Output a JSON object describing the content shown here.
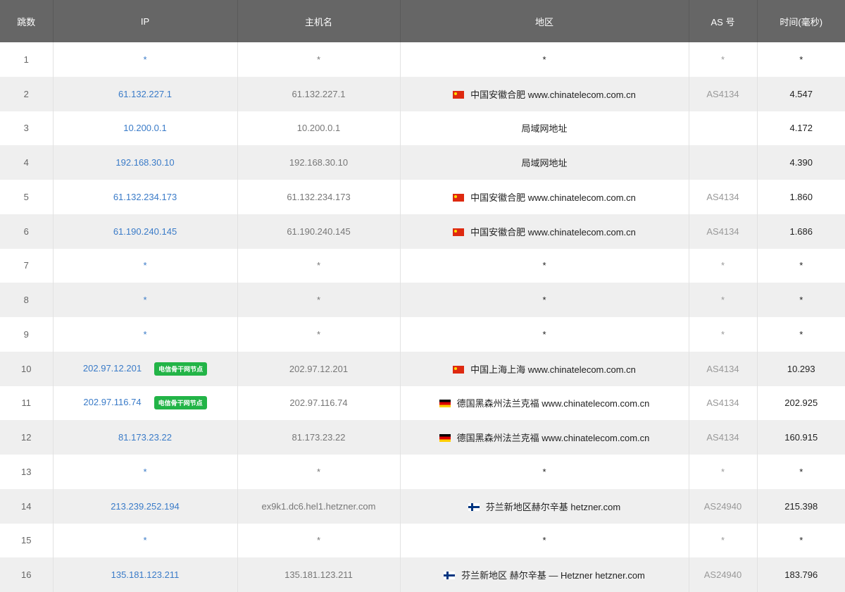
{
  "headers": {
    "hop": "跳数",
    "ip": "IP",
    "host": "主机名",
    "region": "地区",
    "as": "AS 号",
    "time": "时间(毫秒)"
  },
  "colors": {
    "header_bg": "#666666",
    "ip_link": "#3a7bc8",
    "badge": "#22b447",
    "alt_row": "#efefef"
  },
  "rows": [
    {
      "hop": "1",
      "ip": "*",
      "host": "*",
      "flag": "",
      "region": "*",
      "as": "*",
      "time": "*"
    },
    {
      "hop": "2",
      "ip": "61.132.227.1",
      "host": "61.132.227.1",
      "flag": "cn",
      "region": "中国安徽合肥 www.chinatelecom.com.cn",
      "as": "AS4134",
      "time": "4.547"
    },
    {
      "hop": "3",
      "ip": "10.200.0.1",
      "host": "10.200.0.1",
      "flag": "",
      "region": "局域网地址",
      "as": "",
      "time": "4.172"
    },
    {
      "hop": "4",
      "ip": "192.168.30.10",
      "host": "192.168.30.10",
      "flag": "",
      "region": "局域网地址",
      "as": "",
      "time": "4.390"
    },
    {
      "hop": "5",
      "ip": "61.132.234.173",
      "host": "61.132.234.173",
      "flag": "cn",
      "region": "中国安徽合肥 www.chinatelecom.com.cn",
      "as": "AS4134",
      "time": "1.860"
    },
    {
      "hop": "6",
      "ip": "61.190.240.145",
      "host": "61.190.240.145",
      "flag": "cn",
      "region": "中国安徽合肥 www.chinatelecom.com.cn",
      "as": "AS4134",
      "time": "1.686"
    },
    {
      "hop": "7",
      "ip": "*",
      "host": "*",
      "flag": "",
      "region": "*",
      "as": "*",
      "time": "*"
    },
    {
      "hop": "8",
      "ip": "*",
      "host": "*",
      "flag": "",
      "region": "*",
      "as": "*",
      "time": "*"
    },
    {
      "hop": "9",
      "ip": "*",
      "host": "*",
      "flag": "",
      "region": "*",
      "as": "*",
      "time": "*"
    },
    {
      "hop": "10",
      "ip": "202.97.12.201",
      "badge": "电信骨干网节点",
      "host": "202.97.12.201",
      "flag": "cn",
      "region": "中国上海上海 www.chinatelecom.com.cn",
      "as": "AS4134",
      "time": "10.293"
    },
    {
      "hop": "11",
      "ip": "202.97.116.74",
      "badge": "电信骨干网节点",
      "host": "202.97.116.74",
      "flag": "de",
      "region": "德国黑森州法兰克福 www.chinatelecom.com.cn",
      "as": "AS4134",
      "time": "202.925"
    },
    {
      "hop": "12",
      "ip": "81.173.23.22",
      "host": "81.173.23.22",
      "flag": "de",
      "region": "德国黑森州法兰克福 www.chinatelecom.com.cn",
      "as": "AS4134",
      "time": "160.915"
    },
    {
      "hop": "13",
      "ip": "*",
      "host": "*",
      "flag": "",
      "region": "*",
      "as": "*",
      "time": "*"
    },
    {
      "hop": "14",
      "ip": "213.239.252.194",
      "host": "ex9k1.dc6.hel1.hetzner.com",
      "flag": "fi",
      "region": "芬兰新地区赫尔辛基 hetzner.com",
      "as": "AS24940",
      "time": "215.398"
    },
    {
      "hop": "15",
      "ip": "*",
      "host": "*",
      "flag": "",
      "region": "*",
      "as": "*",
      "time": "*"
    },
    {
      "hop": "16",
      "ip": "135.181.123.211",
      "host": "135.181.123.211",
      "flag": "fi",
      "region": "芬兰新地区 赫尔辛基 — Hetzner hetzner.com",
      "as": "AS24940",
      "time": "183.796"
    }
  ]
}
